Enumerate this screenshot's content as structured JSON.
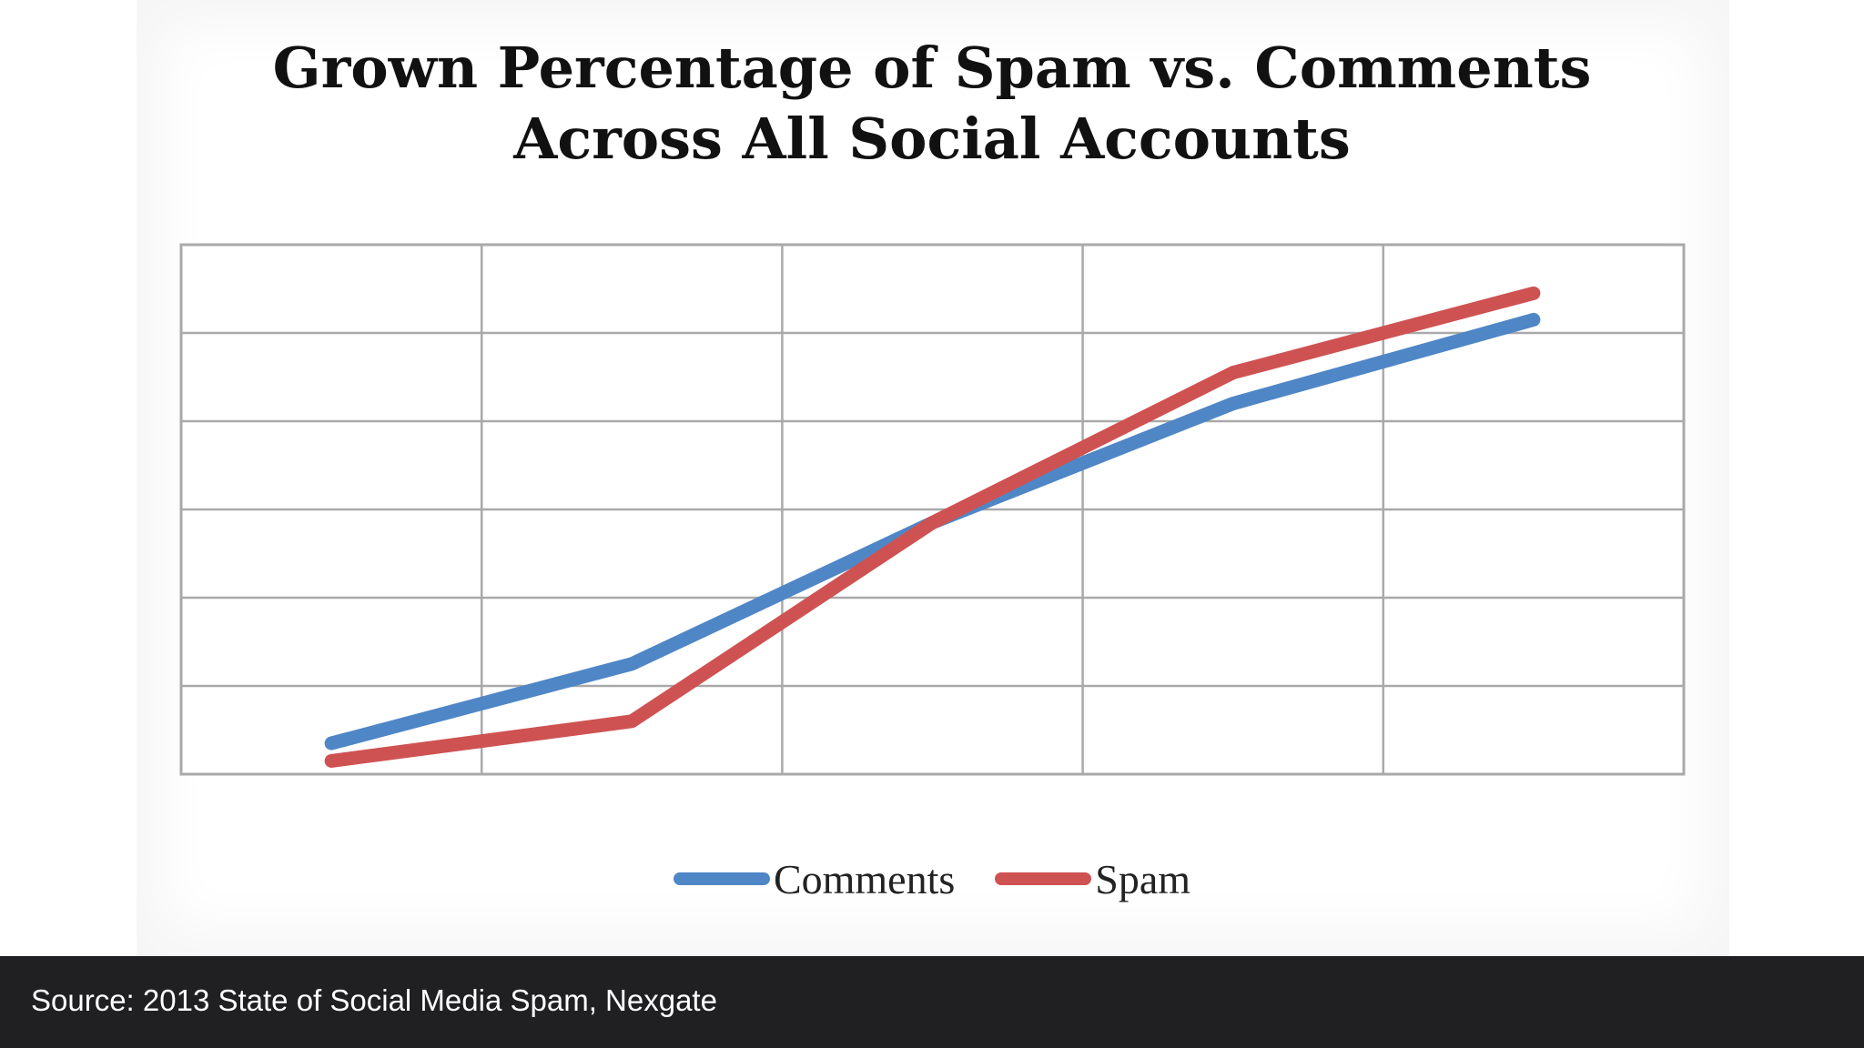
{
  "chart_data": {
    "type": "line",
    "title": [
      "Grown Percentage of Spam vs. Comments",
      "Across All Social Accounts"
    ],
    "xlabel": "",
    "ylabel": "",
    "categories": [
      "",
      "",
      "",
      "",
      ""
    ],
    "ylim": [
      0,
      6
    ],
    "grid": true,
    "legend_position": "bottom",
    "series": [
      {
        "name": "Comments",
        "color": "#4f86c6",
        "values": [
          0.35,
          1.25,
          2.85,
          4.2,
          5.15
        ]
      },
      {
        "name": "Spam",
        "color": "#cf5252",
        "values": [
          0.15,
          0.6,
          2.85,
          4.55,
          5.45
        ]
      }
    ]
  },
  "caption": {
    "text": "Source: 2013 State of Social Media Spam, Nexgate"
  }
}
